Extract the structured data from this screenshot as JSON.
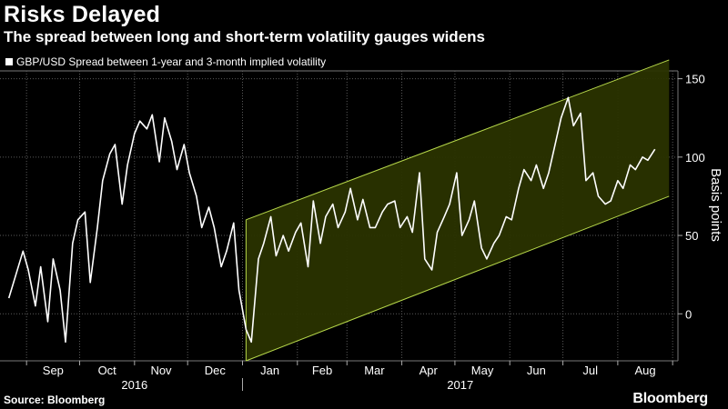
{
  "header": {
    "title": "Risks Delayed",
    "subtitle": "The spread between long and short-term volatility gauges widens"
  },
  "footer": {
    "source": "Source: Bloomberg",
    "brand": "Bloomberg"
  },
  "chart_data": {
    "type": "line",
    "title": "Risks Delayed",
    "subtitle": "The spread between long and short-term volatility gauges widens",
    "ylabel": "Basis points",
    "ylim": [
      -30,
      155
    ],
    "yticks": [
      0,
      50,
      100,
      150
    ],
    "y_axis_side": "right",
    "grid": true,
    "legend_position": "top-left",
    "colors": {
      "background": "#000000",
      "line": "#ffffff",
      "channel_fill": "#2a3300",
      "channel_edge": "#b7d84a",
      "grid": "#5a5a5a"
    },
    "x_month_labels": [
      "Sep",
      "Oct",
      "Nov",
      "Dec",
      "Jan",
      "Feb",
      "Mar",
      "Apr",
      "May",
      "Jun",
      "Jul",
      "Aug"
    ],
    "x_year_labels": [
      "2016",
      "2017"
    ],
    "x": [
      "2016-08-22",
      "2016-08-26",
      "2016-08-30",
      "2016-09-02",
      "2016-09-06",
      "2016-09-09",
      "2016-09-13",
      "2016-09-16",
      "2016-09-20",
      "2016-09-23",
      "2016-09-27",
      "2016-09-30",
      "2016-10-04",
      "2016-10-07",
      "2016-10-11",
      "2016-10-14",
      "2016-10-18",
      "2016-10-21",
      "2016-10-25",
      "2016-10-28",
      "2016-11-01",
      "2016-11-04",
      "2016-11-08",
      "2016-11-11",
      "2016-11-15",
      "2016-11-18",
      "2016-11-22",
      "2016-11-25",
      "2016-11-29",
      "2016-12-02",
      "2016-12-06",
      "2016-12-09",
      "2016-12-13",
      "2016-12-16",
      "2016-12-20",
      "2016-12-23",
      "2016-12-27",
      "2016-12-30",
      "2017-01-03",
      "2017-01-06",
      "2017-01-10",
      "2017-01-13",
      "2017-01-17",
      "2017-01-20",
      "2017-01-24",
      "2017-01-27",
      "2017-01-31",
      "2017-02-03",
      "2017-02-07",
      "2017-02-10",
      "2017-02-14",
      "2017-02-17",
      "2017-02-21",
      "2017-02-24",
      "2017-02-28",
      "2017-03-03",
      "2017-03-07",
      "2017-03-10",
      "2017-03-14",
      "2017-03-17",
      "2017-03-21",
      "2017-03-24",
      "2017-03-28",
      "2017-03-31",
      "2017-04-04",
      "2017-04-07",
      "2017-04-11",
      "2017-04-14",
      "2017-04-18",
      "2017-04-21",
      "2017-04-25",
      "2017-04-28",
      "2017-05-02",
      "2017-05-05",
      "2017-05-09",
      "2017-05-12",
      "2017-05-16",
      "2017-05-19",
      "2017-05-23",
      "2017-05-26",
      "2017-05-30",
      "2017-06-02",
      "2017-06-06",
      "2017-06-09",
      "2017-06-13",
      "2017-06-16",
      "2017-06-20",
      "2017-06-23",
      "2017-06-27",
      "2017-06-30",
      "2017-07-04",
      "2017-07-07",
      "2017-07-11",
      "2017-07-14",
      "2017-07-18",
      "2017-07-21",
      "2017-07-25",
      "2017-07-28",
      "2017-08-01",
      "2017-08-04",
      "2017-08-08",
      "2017-08-11",
      "2017-08-15",
      "2017-08-18",
      "2017-08-22"
    ],
    "series": [
      {
        "name": "GBP/USD Spread between 1-year and 3-month implied volatility",
        "values": [
          10,
          25,
          40,
          28,
          5,
          30,
          -5,
          35,
          15,
          -18,
          45,
          60,
          65,
          20,
          55,
          85,
          102,
          108,
          70,
          95,
          115,
          123,
          118,
          127,
          97,
          125,
          110,
          92,
          108,
          90,
          75,
          55,
          68,
          55,
          30,
          40,
          58,
          15,
          -10,
          -18,
          35,
          45,
          62,
          37,
          50,
          40,
          52,
          58,
          30,
          72,
          45,
          62,
          70,
          55,
          65,
          80,
          60,
          73,
          55,
          55,
          65,
          70,
          72,
          55,
          62,
          52,
          90,
          35,
          28,
          52,
          62,
          70,
          90,
          50,
          60,
          72,
          42,
          35,
          45,
          50,
          62,
          60,
          80,
          92,
          85,
          95,
          80,
          90,
          110,
          125,
          138,
          120,
          128,
          85,
          90,
          75,
          70,
          72,
          85,
          80,
          95,
          92,
          100,
          98,
          105
        ]
      }
    ],
    "channel": {
      "start_date": "2017-01-03",
      "end_date": "2017-08-30",
      "lower_start": -30,
      "lower_end": 75,
      "upper_start": 60,
      "upper_end": 162
    }
  }
}
